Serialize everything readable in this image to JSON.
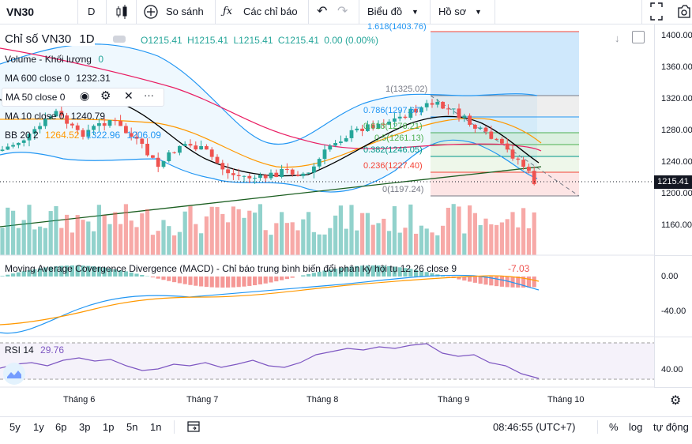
{
  "toolbar": {
    "symbol": "VN30",
    "interval": "D",
    "compare": "So sánh",
    "indicators": "Các chỉ báo",
    "chart_type": "Biểu đồ",
    "profile": "Hồ sơ"
  },
  "legend": {
    "title": "Chỉ số VN30",
    "interval": "1D",
    "open": "O1215.41",
    "high": "H1215.41",
    "low": "L1215.41",
    "close": "C1215.41",
    "change": "0.00 (0.00%)",
    "volume_label": "Volume - Khối lượng",
    "volume_value": "0",
    "ma600_label": "MA 600 close 0",
    "ma600_value": "1232.31",
    "ma50_label": "MA 50 close 0",
    "ma10_label": "MA 10 close 0",
    "ma10_value": "1240.79",
    "bb_label": "BB 20 2",
    "bb_basis": "1264.52",
    "bb_upper": "1322.96",
    "bb_lower": "1206.09"
  },
  "fib": {
    "l1618": "1.618(1403.76)",
    "l1": "1(1325.02)",
    "l786": "0.786(1297.67)",
    "l618": "0.618(1276.21)",
    "l5": "0.5(1261.13)",
    "l382": "0.382(1246.05)",
    "l236": "0.236(1227.40)",
    "l0": "0(1197.24)"
  },
  "macd": {
    "label": "Moving Average Covergence Divergence (MACD) - Chỉ báo trung bình biến đổi phân kỳ hội tụ 12 26 close 9",
    "value": "-7.03"
  },
  "rsi": {
    "label": "RSI 14",
    "value": "29.76"
  },
  "price_axis": [
    "1400.00",
    "1360.00",
    "1320.00",
    "1280.00",
    "1240.00",
    "1200.00",
    "1160.00"
  ],
  "last_price": "1215.41",
  "macd_axis": [
    "0.00",
    "-40.00"
  ],
  "rsi_axis": [
    "40.00"
  ],
  "time_axis": [
    "Tháng 6",
    "Tháng 7",
    "Tháng 8",
    "Tháng 9",
    "Tháng 10"
  ],
  "ranges": [
    "5y",
    "1y",
    "6p",
    "3p",
    "1p",
    "5n",
    "1n"
  ],
  "footer": {
    "clock": "08:46:55 (UTC+7)",
    "percent": "%",
    "log": "log",
    "auto": "tự động"
  },
  "chart_data": {
    "type": "candlestick",
    "symbol": "VN30",
    "interval": "1D",
    "y_axis": [
      1160,
      1400
    ],
    "last_close": 1215.41,
    "fibonacci_levels": [
      {
        "ratio": 1.618,
        "price": 1403.76
      },
      {
        "ratio": 1,
        "price": 1325.02
      },
      {
        "ratio": 0.786,
        "price": 1297.67
      },
      {
        "ratio": 0.618,
        "price": 1276.21
      },
      {
        "ratio": 0.5,
        "price": 1261.13
      },
      {
        "ratio": 0.382,
        "price": 1246.05
      },
      {
        "ratio": 0.236,
        "price": 1227.4
      },
      {
        "ratio": 0,
        "price": 1197.24
      }
    ],
    "indicators": {
      "MA600": 1232.31,
      "MA10": 1240.79,
      "BB_basis": 1264.52,
      "BB_upper": 1322.96,
      "BB_lower": 1206.09,
      "MACD": -7.03,
      "RSI14": 29.76
    }
  },
  "colors": {
    "up": "#26a69a",
    "down": "#ef5350",
    "bb": "#2196f3",
    "ma_red": "#e91e63",
    "ma_orange": "#ff9800",
    "ma_black": "#000000",
    "ma600": "#1b5e20",
    "rsi": "#7e57c2"
  }
}
